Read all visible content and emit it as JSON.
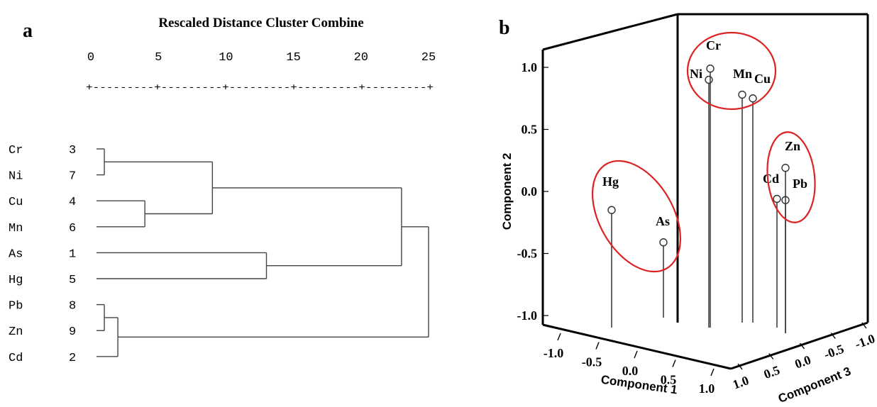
{
  "colors": {
    "ink": "#000000",
    "line": "#444444",
    "cluster_ring": "#dd2222",
    "background": "#ffffff"
  },
  "chart_data": [
    {
      "type": "dendrogram",
      "panel_label": "a",
      "title": "Rescaled Distance Cluster Combine",
      "axis": {
        "range": [
          0,
          25
        ],
        "ticks": [
          0,
          5,
          10,
          15,
          20,
          25
        ],
        "dash_pattern": "+---------+---------+---------+---------+---------+"
      },
      "leaves": [
        {
          "label": "Cr",
          "number": "3"
        },
        {
          "label": "Ni",
          "number": "7"
        },
        {
          "label": "Cu",
          "number": "4"
        },
        {
          "label": "Mn",
          "number": "6"
        },
        {
          "label": "As",
          "number": "1"
        },
        {
          "label": "Hg",
          "number": "5"
        },
        {
          "label": "Pb",
          "number": "8"
        },
        {
          "label": "Zn",
          "number": "9"
        },
        {
          "label": "Cd",
          "number": "2"
        }
      ],
      "merges": [
        {
          "left": "Cr",
          "right": "Ni",
          "distance": 1
        },
        {
          "left": "Pb",
          "right": "Zn",
          "distance": 1
        },
        {
          "left": "Pb-Zn",
          "right": "Cd",
          "distance": 2
        },
        {
          "left": "Cu",
          "right": "Mn",
          "distance": 4
        },
        {
          "left": "Cr-Ni",
          "right": "Cu-Mn",
          "distance": 9
        },
        {
          "left": "As",
          "right": "Hg",
          "distance": 13
        },
        {
          "left": "Cr-Ni-Cu-Mn",
          "right": "As-Hg",
          "distance": 23
        },
        {
          "left": "Cr-Ni-Cu-Mn-As-Hg",
          "right": "Pb-Zn-Cd",
          "distance": 25
        }
      ]
    },
    {
      "type": "scatter3d",
      "panel_label": "b",
      "xlabel": "Component 1",
      "ylabel": "Component 2",
      "zlabel": "Component 3",
      "ylim": [
        -1.0,
        1.0
      ],
      "yticks": [
        "1.0",
        "0.5",
        "0.0",
        "-0.5",
        "-1.0"
      ],
      "xticks": [
        "-1.0",
        "-0.5",
        "0.0",
        "0.5",
        "1.0"
      ],
      "zticks": [
        "1.0",
        "0.5",
        "0.0",
        "-0.5",
        "-1.0"
      ],
      "points": [
        {
          "label": "Cr",
          "y": 0.99
        },
        {
          "label": "Ni",
          "y": 0.9
        },
        {
          "label": "Mn",
          "y": 0.78
        },
        {
          "label": "Cu",
          "y": 0.75
        },
        {
          "label": "Zn",
          "y": 0.19
        },
        {
          "label": "Cd",
          "y": -0.06
        },
        {
          "label": "Pb",
          "y": -0.07
        },
        {
          "label": "Hg",
          "y": -0.15
        },
        {
          "label": "As",
          "y": -0.41
        }
      ],
      "groups": [
        [
          "Cr",
          "Ni",
          "Mn",
          "Cu"
        ],
        [
          "Zn",
          "Cd",
          "Pb"
        ],
        [
          "Hg",
          "As"
        ]
      ]
    }
  ]
}
